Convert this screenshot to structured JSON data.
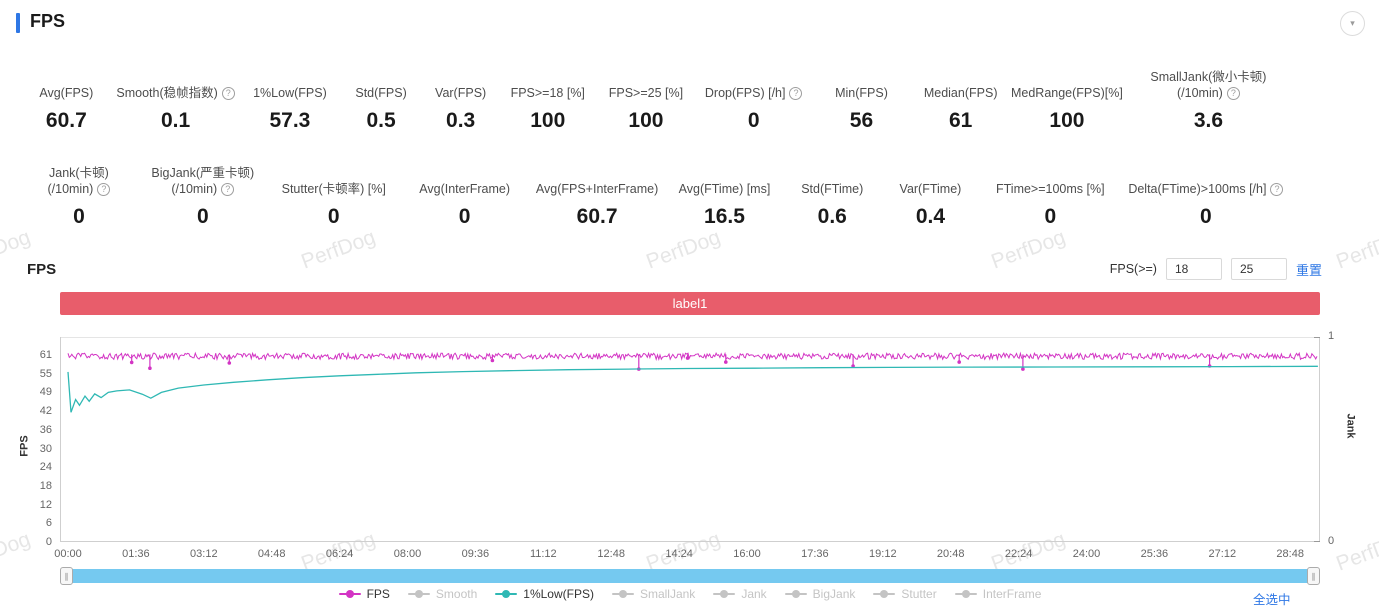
{
  "header": {
    "title": "FPS",
    "collapse_icon": "▾"
  },
  "colors": {
    "accent_blue": "#2e77e5",
    "banner_red": "#e85d6b",
    "fps_line": "#d334c4",
    "low_line": "#2fb8b4",
    "scrollbar_blue": "#75c9f0",
    "inactive_gray": "#c4c4c4"
  },
  "watermark": {
    "text": "PerfDog"
  },
  "metrics_row1": [
    {
      "label_lines": [
        "Avg(FPS)"
      ],
      "value": "60.7",
      "help": false
    },
    {
      "label_lines": [
        "Smooth(稳帧指数)"
      ],
      "value": "0.1",
      "help": true
    },
    {
      "label_lines": [
        "1%Low(FPS)"
      ],
      "value": "57.3",
      "help": false
    },
    {
      "label_lines": [
        "Std(FPS)"
      ],
      "value": "0.5",
      "help": false
    },
    {
      "label_lines": [
        "Var(FPS)"
      ],
      "value": "0.3",
      "help": false
    },
    {
      "label_lines": [
        "FPS>=18 [%]"
      ],
      "value": "100",
      "help": false
    },
    {
      "label_lines": [
        "FPS>=25 [%]"
      ],
      "value": "100",
      "help": false
    },
    {
      "label_lines": [
        "Drop(FPS) [/h]"
      ],
      "value": "0",
      "help": true
    },
    {
      "label_lines": [
        "Min(FPS)"
      ],
      "value": "56",
      "help": false
    },
    {
      "label_lines": [
        "Median(FPS)"
      ],
      "value": "61",
      "help": false
    },
    {
      "label_lines": [
        "MedRange(FPS)[%]"
      ],
      "value": "100",
      "help": false
    },
    {
      "label_lines": [
        "SmallJank(微小卡顿)",
        "(/10min)"
      ],
      "value": "3.6",
      "help": true
    }
  ],
  "metrics_row2": [
    {
      "label_lines": [
        "Jank(卡顿)",
        "(/10min)"
      ],
      "value": "0",
      "help": true
    },
    {
      "label_lines": [
        "BigJank(严重卡顿)",
        "(/10min)"
      ],
      "value": "0",
      "help": true
    },
    {
      "label_lines": [
        "Stutter(卡顿率) [%]"
      ],
      "value": "0",
      "help": false
    },
    {
      "label_lines": [
        "Avg(InterFrame)"
      ],
      "value": "0",
      "help": false
    },
    {
      "label_lines": [
        "Avg(FPS+InterFrame)"
      ],
      "value": "60.7",
      "help": false
    },
    {
      "label_lines": [
        "Avg(FTime) [ms]"
      ],
      "value": "16.5",
      "help": false
    },
    {
      "label_lines": [
        "Std(FTime)"
      ],
      "value": "0.6",
      "help": false
    },
    {
      "label_lines": [
        "Var(FTime)"
      ],
      "value": "0.4",
      "help": false
    },
    {
      "label_lines": [
        "FTime>=100ms [%]"
      ],
      "value": "0",
      "help": false
    },
    {
      "label_lines": [
        "Delta(FTime)>100ms [/h]"
      ],
      "value": "0",
      "help": true
    }
  ],
  "chart_section": {
    "title": "FPS",
    "filter_label": "FPS(>=)",
    "input1": "18",
    "input2": "25",
    "reset_label": "重置",
    "banner_label": "label1",
    "select_all_label": "全选中"
  },
  "legend": [
    {
      "label": "FPS",
      "color": "#d334c4",
      "active": true
    },
    {
      "label": "Smooth",
      "color": "#c4c4c4",
      "active": false
    },
    {
      "label": "1%Low(FPS)",
      "color": "#2fb8b4",
      "active": true
    },
    {
      "label": "SmallJank",
      "color": "#c4c4c4",
      "active": false
    },
    {
      "label": "Jank",
      "color": "#c4c4c4",
      "active": false
    },
    {
      "label": "BigJank",
      "color": "#c4c4c4",
      "active": false
    },
    {
      "label": "Stutter",
      "color": "#c4c4c4",
      "active": false
    },
    {
      "label": "InterFrame",
      "color": "#c4c4c4",
      "active": false
    }
  ],
  "chart_data": {
    "type": "line",
    "title": "label1",
    "x_axis": {
      "tick_interval_seconds": 96,
      "tick_labels": [
        "00:00",
        "01:36",
        "03:12",
        "04:48",
        "06:24",
        "08:00",
        "09:36",
        "11:12",
        "12:48",
        "14:24",
        "16:00",
        "17:36",
        "19:12",
        "20:48",
        "22:24",
        "24:00",
        "25:36",
        "27:12",
        "28:48"
      ]
    },
    "y_axis_left": {
      "label": "FPS",
      "ticks": [
        61,
        55,
        49,
        42,
        36,
        30,
        24,
        18,
        12,
        6,
        0
      ]
    },
    "y_axis_right": {
      "label": "Jank",
      "ticks": [
        1,
        0
      ]
    },
    "series": [
      {
        "name": "FPS",
        "color": "#d334c4",
        "baseline": 60.6,
        "noise_amplitude": 1.0,
        "end_time_min": 29.45,
        "dips": [
          [
            1.5,
            58.6
          ],
          [
            1.93,
            56.7
          ],
          [
            3.8,
            58.4
          ],
          [
            10.0,
            59.2
          ],
          [
            13.45,
            56.4
          ],
          [
            14.6,
            60.0
          ],
          [
            15.5,
            58.7
          ],
          [
            18.5,
            57.4
          ],
          [
            21.0,
            58.7
          ],
          [
            22.5,
            56.4
          ],
          [
            26.9,
            57.4
          ]
        ]
      },
      {
        "name": "1%Low(FPS)",
        "color": "#2fb8b4",
        "points": [
          [
            0,
            55.5
          ],
          [
            0.07,
            42.3
          ],
          [
            0.18,
            46.5
          ],
          [
            0.27,
            44.6
          ],
          [
            0.4,
            47.6
          ],
          [
            0.5,
            45.9
          ],
          [
            0.63,
            48.3
          ],
          [
            0.78,
            47.1
          ],
          [
            0.95,
            48.8
          ],
          [
            1.15,
            49.3
          ],
          [
            1.45,
            49.6
          ],
          [
            1.75,
            48.2
          ],
          [
            1.95,
            46.9
          ],
          [
            2.2,
            48.8
          ],
          [
            2.6,
            50.2
          ],
          [
            3.2,
            51.2
          ],
          [
            3.9,
            52.1
          ],
          [
            4.7,
            52.9
          ],
          [
            5.5,
            53.6
          ],
          [
            6.4,
            54.2
          ],
          [
            7.3,
            54.7
          ],
          [
            8.2,
            55.2
          ],
          [
            9.3,
            55.6
          ],
          [
            10.5,
            55.9
          ],
          [
            11.8,
            56.2
          ],
          [
            13.2,
            56.4
          ],
          [
            14.6,
            56.6
          ],
          [
            16.2,
            56.7
          ],
          [
            17.8,
            56.85
          ],
          [
            19.4,
            56.95
          ],
          [
            21.2,
            57.05
          ],
          [
            23.2,
            57.1
          ],
          [
            25.4,
            57.15
          ],
          [
            27.4,
            57.2
          ],
          [
            29.45,
            57.3
          ]
        ]
      }
    ],
    "legend_position": "bottom",
    "grid": false
  }
}
